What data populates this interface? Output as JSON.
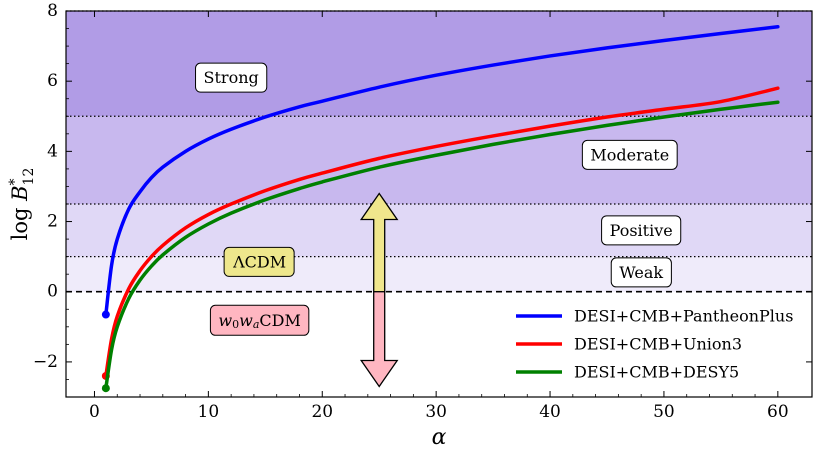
{
  "chart_data": {
    "type": "line",
    "title": "",
    "xlabel": "α",
    "ylabel": "log B*12",
    "ylabel_main": "log B",
    "ylabel_sup": "*",
    "ylabel_sub": "12",
    "xlim": [
      -2.5,
      63
    ],
    "ylim": [
      -3,
      8
    ],
    "xticks": [
      0,
      10,
      20,
      30,
      40,
      50,
      60
    ],
    "yticks": [
      -2,
      0,
      2,
      4,
      6,
      8
    ],
    "xtick_labels": [
      "0",
      "10",
      "20",
      "30",
      "40",
      "50",
      "60"
    ],
    "ytick_labels": [
      "−2",
      "0",
      "2",
      "4",
      "6",
      "8"
    ],
    "regions": [
      {
        "name": "Weak",
        "y0": 0,
        "y1": 1,
        "color": "#efebfa",
        "label_x": 48,
        "label_y": 0.55
      },
      {
        "name": "Positive",
        "y0": 1,
        "y1": 2.5,
        "color": "#e0d8f6",
        "label_x": 48,
        "label_y": 1.75
      },
      {
        "name": "Moderate",
        "y0": 2.5,
        "y1": 5,
        "color": "#c8b8ee",
        "label_x": 47,
        "label_y": 3.9
      },
      {
        "name": "Strong",
        "y0": 5,
        "y1": 8,
        "color": "#b19ce6",
        "label_x": 12,
        "label_y": 6.1
      }
    ],
    "thresholds": [
      1,
      2.5,
      5,
      8
    ],
    "zero_line": 0,
    "series": [
      {
        "name": "DESI+CMB+PantheonPlus",
        "color": "#0000ff",
        "start": -0.65,
        "x": [
          1,
          1.5,
          2,
          3,
          4,
          5,
          6,
          8,
          10,
          12,
          15,
          18,
          20,
          25,
          30,
          35,
          40,
          45,
          50,
          55,
          60
        ],
        "y": [
          -0.65,
          0.75,
          1.5,
          2.35,
          2.85,
          3.25,
          3.55,
          4.0,
          4.35,
          4.63,
          4.98,
          5.27,
          5.43,
          5.83,
          6.17,
          6.46,
          6.72,
          6.95,
          7.16,
          7.36,
          7.55
        ]
      },
      {
        "name": "DESI+CMB+Union3",
        "color": "#ff0000",
        "start": -2.4,
        "x": [
          1,
          1.5,
          2,
          3,
          4,
          5,
          6,
          8,
          10,
          12,
          15,
          18,
          20,
          25,
          30,
          35,
          40,
          45,
          50,
          55,
          60
        ],
        "y": [
          -2.4,
          -1.35,
          -0.7,
          0.08,
          0.6,
          1.0,
          1.32,
          1.82,
          2.2,
          2.5,
          2.88,
          3.2,
          3.38,
          3.8,
          4.14,
          4.44,
          4.72,
          4.98,
          5.2,
          5.42,
          5.8
        ]
      },
      {
        "name": "DESI+CMB+DESY5",
        "color": "#008000",
        "start": -2.75,
        "x": [
          1,
          1.5,
          2,
          3,
          4,
          5,
          6,
          8,
          10,
          12,
          15,
          18,
          20,
          25,
          30,
          35,
          40,
          45,
          50,
          55,
          60
        ],
        "y": [
          -2.75,
          -1.65,
          -1.0,
          -0.2,
          0.33,
          0.73,
          1.05,
          1.55,
          1.93,
          2.24,
          2.62,
          2.94,
          3.13,
          3.55,
          3.89,
          4.2,
          4.48,
          4.74,
          4.98,
          5.2,
          5.4
        ]
      }
    ],
    "legend": {
      "placement": "bottom-right",
      "entries": [
        "DESI+CMB+PantheonPlus",
        "DESI+CMB+Union3",
        "DESI+CMB+DESY5"
      ]
    },
    "annotations": [
      {
        "name": "lcdm-label",
        "text": "ΛCDM",
        "x": 14.5,
        "y": 0.85,
        "color": "#eee78c"
      },
      {
        "name": "w0wa-label",
        "text": "w0waCDM",
        "main1": "w",
        "sub1": "0",
        "main2": "w",
        "sub2": "a",
        "tail": "CDM",
        "x": 14.5,
        "y": -0.8,
        "color": "#ffb6c1"
      }
    ],
    "arrow": {
      "x": 25,
      "y_top": 2.8,
      "y_bottom": -2.7,
      "split": 0,
      "up_color": "#f0e68c",
      "down_color": "#ffb6c1"
    }
  }
}
